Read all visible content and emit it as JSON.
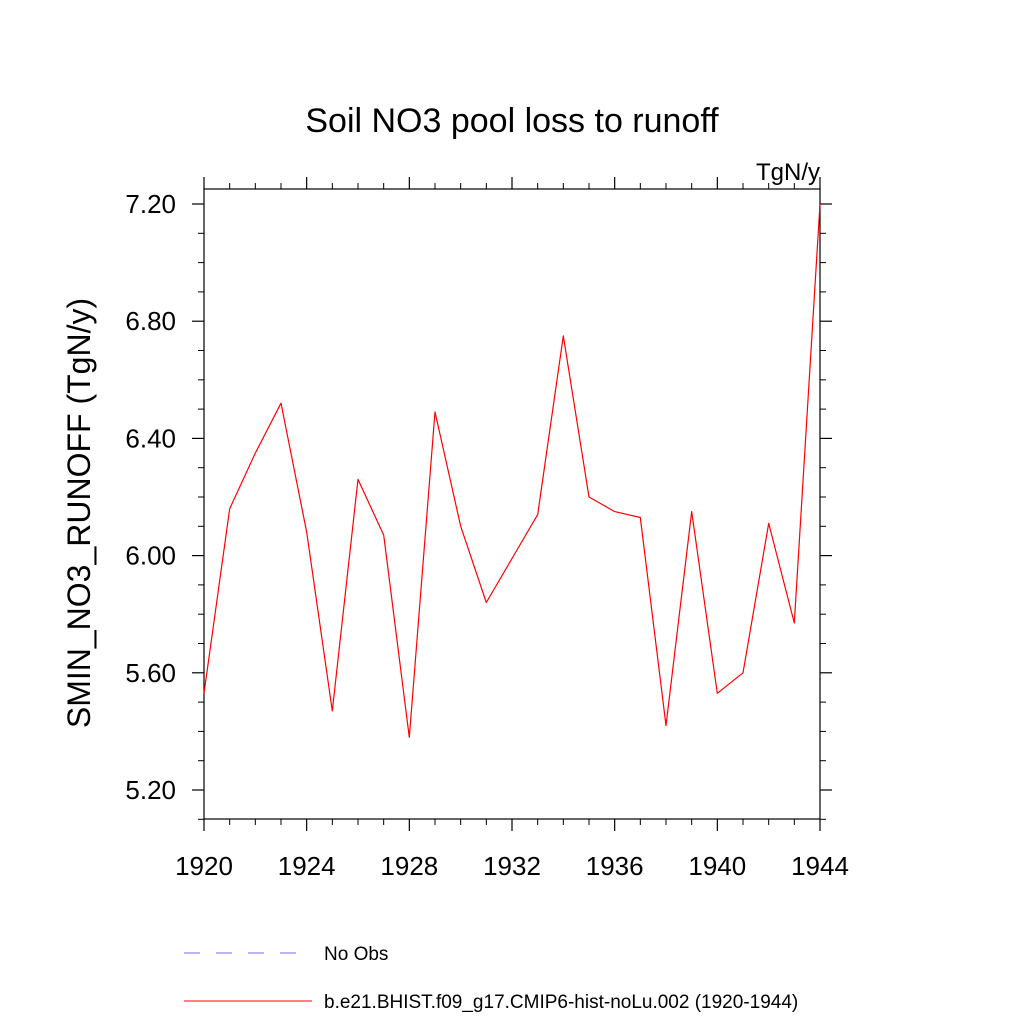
{
  "chart_data": {
    "type": "line",
    "title": "Soil NO3 pool loss to runoff",
    "units_label": "TgN/y",
    "ylabel": "SMIN_NO3_RUNOFF  (TgN/y)",
    "xlabel": "",
    "xlim": [
      1920,
      1944
    ],
    "ylim": [
      5.1,
      7.2
    ],
    "x_ticks": [
      1920,
      1924,
      1928,
      1932,
      1936,
      1940,
      1944
    ],
    "x_tick_labels": [
      "1920",
      "1924",
      "1928",
      "1932",
      "1936",
      "1940",
      "1944"
    ],
    "y_ticks": [
      5.2,
      5.6,
      6.0,
      6.4,
      6.8,
      7.2
    ],
    "y_tick_labels": [
      "5.20",
      "5.60",
      "6.00",
      "6.40",
      "6.80",
      "7.20"
    ],
    "x": [
      1920,
      1921,
      1922,
      1923,
      1924,
      1925,
      1926,
      1927,
      1928,
      1929,
      1930,
      1931,
      1932,
      1933,
      1934,
      1935,
      1936,
      1937,
      1938,
      1939,
      1940,
      1941,
      1942,
      1943,
      1944
    ],
    "series": [
      {
        "name": "b.e21.BHIST.f09_g17.CMIP6-hist-noLu.002 (1920-1944)",
        "color": "#ff0000",
        "values": [
          5.53,
          6.16,
          6.35,
          6.52,
          6.08,
          5.47,
          6.26,
          6.07,
          5.38,
          6.49,
          6.1,
          5.84,
          5.99,
          6.14,
          6.75,
          6.2,
          6.15,
          6.13,
          5.42,
          6.15,
          5.53,
          5.6,
          6.11,
          5.77,
          7.2
        ]
      }
    ],
    "legend": [
      {
        "label": "No Obs",
        "color": "#7b68ee",
        "style": "dashed"
      },
      {
        "label": "b.e21.BHIST.f09_g17.CMIP6-hist-noLu.002 (1920-1944)",
        "color": "#ff0000",
        "style": "solid"
      }
    ],
    "legend_placement": "bottom",
    "grid": false
  }
}
